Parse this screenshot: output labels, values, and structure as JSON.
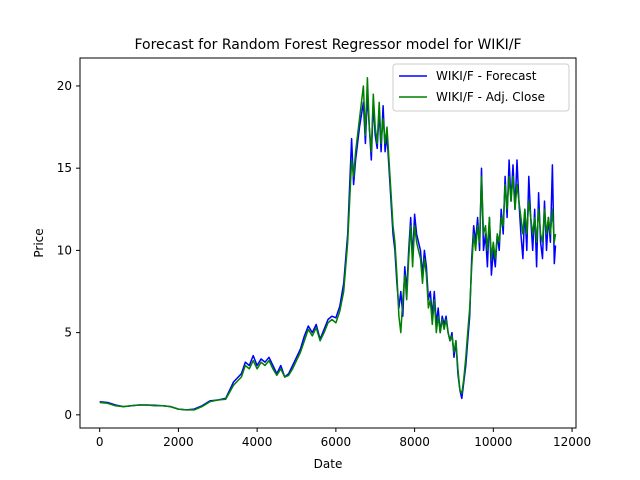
{
  "chart_data": {
    "type": "line",
    "title": "Forecast for Random Forest Regressor model for WIKI/F",
    "xlabel": "Date",
    "ylabel": "Price",
    "xlim": [
      -500,
      12100
    ],
    "ylim": [
      -0.8,
      21.7
    ],
    "xticks": [
      0,
      2000,
      4000,
      6000,
      8000,
      10000,
      12000
    ],
    "xtick_labels": [
      "0",
      "2000",
      "4000",
      "6000",
      "8000",
      "10000",
      "12000"
    ],
    "yticks": [
      0,
      5,
      10,
      15,
      20
    ],
    "ytick_labels": [
      "0",
      "5",
      "10",
      "15",
      "20"
    ],
    "grid": false,
    "legend_position": "top-right",
    "series": [
      {
        "name": "WIKI/F - Forecast",
        "color": "#0000ff",
        "points": [
          [
            0,
            0.8
          ],
          [
            200,
            0.75
          ],
          [
            400,
            0.6
          ],
          [
            600,
            0.5
          ],
          [
            800,
            0.55
          ],
          [
            1000,
            0.6
          ],
          [
            1200,
            0.6
          ],
          [
            1400,
            0.58
          ],
          [
            1600,
            0.55
          ],
          [
            1800,
            0.5
          ],
          [
            2000,
            0.35
          ],
          [
            2200,
            0.3
          ],
          [
            2400,
            0.35
          ],
          [
            2600,
            0.55
          ],
          [
            2800,
            0.85
          ],
          [
            3000,
            0.9
          ],
          [
            3200,
            1.0
          ],
          [
            3400,
            2.0
          ],
          [
            3600,
            2.5
          ],
          [
            3700,
            3.2
          ],
          [
            3800,
            3.0
          ],
          [
            3900,
            3.6
          ],
          [
            4000,
            3.0
          ],
          [
            4100,
            3.4
          ],
          [
            4200,
            3.2
          ],
          [
            4300,
            3.5
          ],
          [
            4400,
            3.0
          ],
          [
            4500,
            2.5
          ],
          [
            4600,
            3.0
          ],
          [
            4700,
            2.3
          ],
          [
            4800,
            2.5
          ],
          [
            4900,
            3.0
          ],
          [
            5000,
            3.5
          ],
          [
            5100,
            4.0
          ],
          [
            5200,
            4.8
          ],
          [
            5300,
            5.4
          ],
          [
            5400,
            5.0
          ],
          [
            5500,
            5.5
          ],
          [
            5600,
            4.6
          ],
          [
            5700,
            5.2
          ],
          [
            5800,
            5.8
          ],
          [
            5900,
            6.0
          ],
          [
            6000,
            5.9
          ],
          [
            6100,
            6.6
          ],
          [
            6200,
            8.0
          ],
          [
            6300,
            11.0
          ],
          [
            6400,
            16.8
          ],
          [
            6450,
            14.0
          ],
          [
            6500,
            15.5
          ],
          [
            6600,
            17.5
          ],
          [
            6700,
            19.0
          ],
          [
            6750,
            16.5
          ],
          [
            6800,
            19.5
          ],
          [
            6850,
            17.5
          ],
          [
            6900,
            15.5
          ],
          [
            6950,
            19.0
          ],
          [
            7000,
            17.0
          ],
          [
            7050,
            16.2
          ],
          [
            7100,
            18.5
          ],
          [
            7150,
            16.0
          ],
          [
            7200,
            18.8
          ],
          [
            7250,
            16.0
          ],
          [
            7300,
            17.0
          ],
          [
            7350,
            15.0
          ],
          [
            7400,
            13.0
          ],
          [
            7450,
            11.0
          ],
          [
            7500,
            10.0
          ],
          [
            7550,
            8.0
          ],
          [
            7600,
            6.5
          ],
          [
            7650,
            7.5
          ],
          [
            7700,
            6.0
          ],
          [
            7750,
            9.0
          ],
          [
            7800,
            7.5
          ],
          [
            7850,
            10.0
          ],
          [
            7900,
            12.0
          ],
          [
            7950,
            9.5
          ],
          [
            8000,
            12.2
          ],
          [
            8050,
            11.0
          ],
          [
            8100,
            10.5
          ],
          [
            8150,
            10.0
          ],
          [
            8200,
            8.5
          ],
          [
            8250,
            10.0
          ],
          [
            8300,
            9.0
          ],
          [
            8350,
            7.0
          ],
          [
            8400,
            7.5
          ],
          [
            8450,
            6.0
          ],
          [
            8500,
            7.5
          ],
          [
            8550,
            5.5
          ],
          [
            8600,
            6.5
          ],
          [
            8650,
            5.0
          ],
          [
            8700,
            6.0
          ],
          [
            8750,
            5.5
          ],
          [
            8800,
            6.0
          ],
          [
            8850,
            5.0
          ],
          [
            8900,
            4.5
          ],
          [
            8950,
            5.0
          ],
          [
            9000,
            3.5
          ],
          [
            9050,
            4.5
          ],
          [
            9100,
            2.5
          ],
          [
            9150,
            1.5
          ],
          [
            9200,
            1.0
          ],
          [
            9250,
            2.0
          ],
          [
            9300,
            3.0
          ],
          [
            9350,
            4.5
          ],
          [
            9400,
            6.0
          ],
          [
            9450,
            9.5
          ],
          [
            9500,
            11.5
          ],
          [
            9550,
            10.5
          ],
          [
            9600,
            12.0
          ],
          [
            9650,
            10.0
          ],
          [
            9700,
            15.0
          ],
          [
            9750,
            10.0
          ],
          [
            9800,
            11.0
          ],
          [
            9850,
            9.0
          ],
          [
            9900,
            12.0
          ],
          [
            9950,
            8.5
          ],
          [
            10000,
            10.0
          ],
          [
            10050,
            9.0
          ],
          [
            10100,
            11.0
          ],
          [
            10150,
            10.0
          ],
          [
            10200,
            12.5
          ],
          [
            10250,
            11.0
          ],
          [
            10300,
            14.5
          ],
          [
            10350,
            12.0
          ],
          [
            10400,
            15.5
          ],
          [
            10450,
            13.0
          ],
          [
            10500,
            15.2
          ],
          [
            10550,
            12.5
          ],
          [
            10600,
            15.5
          ],
          [
            10650,
            13.0
          ],
          [
            10700,
            11.0
          ],
          [
            10750,
            9.5
          ],
          [
            10800,
            12.5
          ],
          [
            10850,
            10.0
          ],
          [
            10900,
            14.5
          ],
          [
            10950,
            12.0
          ],
          [
            11000,
            10.0
          ],
          [
            11050,
            12.5
          ],
          [
            11100,
            9.0
          ],
          [
            11150,
            13.5
          ],
          [
            11200,
            10.5
          ],
          [
            11250,
            9.5
          ],
          [
            11300,
            13.0
          ],
          [
            11350,
            10.0
          ],
          [
            11400,
            12.0
          ],
          [
            11450,
            10.5
          ],
          [
            11500,
            15.2
          ],
          [
            11550,
            9.2
          ],
          [
            11580,
            10.3
          ]
        ]
      },
      {
        "name": "WIKI/F - Adj. Close",
        "color": "#008000",
        "points": [
          [
            0,
            0.75
          ],
          [
            200,
            0.7
          ],
          [
            400,
            0.55
          ],
          [
            600,
            0.5
          ],
          [
            800,
            0.55
          ],
          [
            1000,
            0.6
          ],
          [
            1200,
            0.6
          ],
          [
            1400,
            0.55
          ],
          [
            1600,
            0.55
          ],
          [
            1800,
            0.5
          ],
          [
            2000,
            0.35
          ],
          [
            2200,
            0.3
          ],
          [
            2400,
            0.3
          ],
          [
            2600,
            0.5
          ],
          [
            2800,
            0.8
          ],
          [
            3000,
            0.9
          ],
          [
            3200,
            0.95
          ],
          [
            3400,
            1.8
          ],
          [
            3600,
            2.3
          ],
          [
            3700,
            3.0
          ],
          [
            3800,
            2.8
          ],
          [
            3900,
            3.3
          ],
          [
            4000,
            2.8
          ],
          [
            4100,
            3.2
          ],
          [
            4200,
            3.0
          ],
          [
            4300,
            3.3
          ],
          [
            4400,
            2.8
          ],
          [
            4500,
            2.4
          ],
          [
            4600,
            2.8
          ],
          [
            4700,
            2.3
          ],
          [
            4800,
            2.4
          ],
          [
            4900,
            2.8
          ],
          [
            5000,
            3.3
          ],
          [
            5100,
            3.8
          ],
          [
            5200,
            4.5
          ],
          [
            5300,
            5.2
          ],
          [
            5400,
            4.8
          ],
          [
            5500,
            5.3
          ],
          [
            5600,
            4.5
          ],
          [
            5700,
            5.0
          ],
          [
            5800,
            5.6
          ],
          [
            5900,
            5.8
          ],
          [
            6000,
            5.6
          ],
          [
            6100,
            6.3
          ],
          [
            6200,
            7.5
          ],
          [
            6300,
            10.5
          ],
          [
            6400,
            15.5
          ],
          [
            6450,
            14.5
          ],
          [
            6500,
            16.0
          ],
          [
            6600,
            18.0
          ],
          [
            6700,
            20.0
          ],
          [
            6750,
            17.0
          ],
          [
            6800,
            20.5
          ],
          [
            6850,
            17.5
          ],
          [
            6900,
            16.0
          ],
          [
            6950,
            19.5
          ],
          [
            7000,
            17.5
          ],
          [
            7050,
            16.5
          ],
          [
            7100,
            19.0
          ],
          [
            7150,
            16.5
          ],
          [
            7200,
            18.0
          ],
          [
            7250,
            16.5
          ],
          [
            7300,
            17.5
          ],
          [
            7350,
            15.5
          ],
          [
            7400,
            13.5
          ],
          [
            7450,
            11.5
          ],
          [
            7500,
            10.5
          ],
          [
            7550,
            8.5
          ],
          [
            7600,
            6.0
          ],
          [
            7650,
            5.0
          ],
          [
            7700,
            7.0
          ],
          [
            7750,
            8.5
          ],
          [
            7800,
            7.0
          ],
          [
            7850,
            9.5
          ],
          [
            7900,
            11.5
          ],
          [
            7950,
            9.0
          ],
          [
            8000,
            11.5
          ],
          [
            8050,
            10.5
          ],
          [
            8100,
            10.0
          ],
          [
            8150,
            9.5
          ],
          [
            8200,
            8.0
          ],
          [
            8250,
            9.5
          ],
          [
            8300,
            8.5
          ],
          [
            8350,
            6.5
          ],
          [
            8400,
            7.0
          ],
          [
            8450,
            5.5
          ],
          [
            8500,
            7.0
          ],
          [
            8550,
            5.0
          ],
          [
            8600,
            6.0
          ],
          [
            8650,
            5.0
          ],
          [
            8700,
            5.8
          ],
          [
            8750,
            5.2
          ],
          [
            8800,
            5.8
          ],
          [
            8850,
            5.0
          ],
          [
            8900,
            4.5
          ],
          [
            8950,
            4.8
          ],
          [
            9000,
            3.8
          ],
          [
            9050,
            4.5
          ],
          [
            9100,
            2.8
          ],
          [
            9150,
            1.5
          ],
          [
            9200,
            1.3
          ],
          [
            9250,
            2.2
          ],
          [
            9300,
            3.5
          ],
          [
            9350,
            5.0
          ],
          [
            9400,
            6.5
          ],
          [
            9450,
            9.0
          ],
          [
            9500,
            11.0
          ],
          [
            9550,
            10.0
          ],
          [
            9600,
            11.5
          ],
          [
            9650,
            10.5
          ],
          [
            9700,
            14.5
          ],
          [
            9750,
            11.0
          ],
          [
            9800,
            11.5
          ],
          [
            9850,
            10.0
          ],
          [
            9900,
            12.0
          ],
          [
            9950,
            9.5
          ],
          [
            10000,
            10.5
          ],
          [
            10050,
            9.5
          ],
          [
            10100,
            11.0
          ],
          [
            10150,
            10.5
          ],
          [
            10200,
            12.0
          ],
          [
            10250,
            11.5
          ],
          [
            10300,
            14.0
          ],
          [
            10350,
            12.5
          ],
          [
            10400,
            14.5
          ],
          [
            10450,
            13.0
          ],
          [
            10500,
            14.5
          ],
          [
            10550,
            12.5
          ],
          [
            10600,
            14.0
          ],
          [
            10650,
            13.0
          ],
          [
            10700,
            12.0
          ],
          [
            10750,
            11.0
          ],
          [
            10800,
            12.5
          ],
          [
            10850,
            11.0
          ],
          [
            10900,
            13.0
          ],
          [
            10950,
            12.0
          ],
          [
            11000,
            11.0
          ],
          [
            11050,
            12.0
          ],
          [
            11100,
            10.5
          ],
          [
            11150,
            12.5
          ],
          [
            11200,
            11.0
          ],
          [
            11250,
            10.5
          ],
          [
            11300,
            12.5
          ],
          [
            11350,
            11.0
          ],
          [
            11400,
            12.0
          ],
          [
            11450,
            11.0
          ],
          [
            11500,
            12.5
          ],
          [
            11550,
            10.5
          ],
          [
            11580,
            11.0
          ]
        ]
      }
    ]
  }
}
